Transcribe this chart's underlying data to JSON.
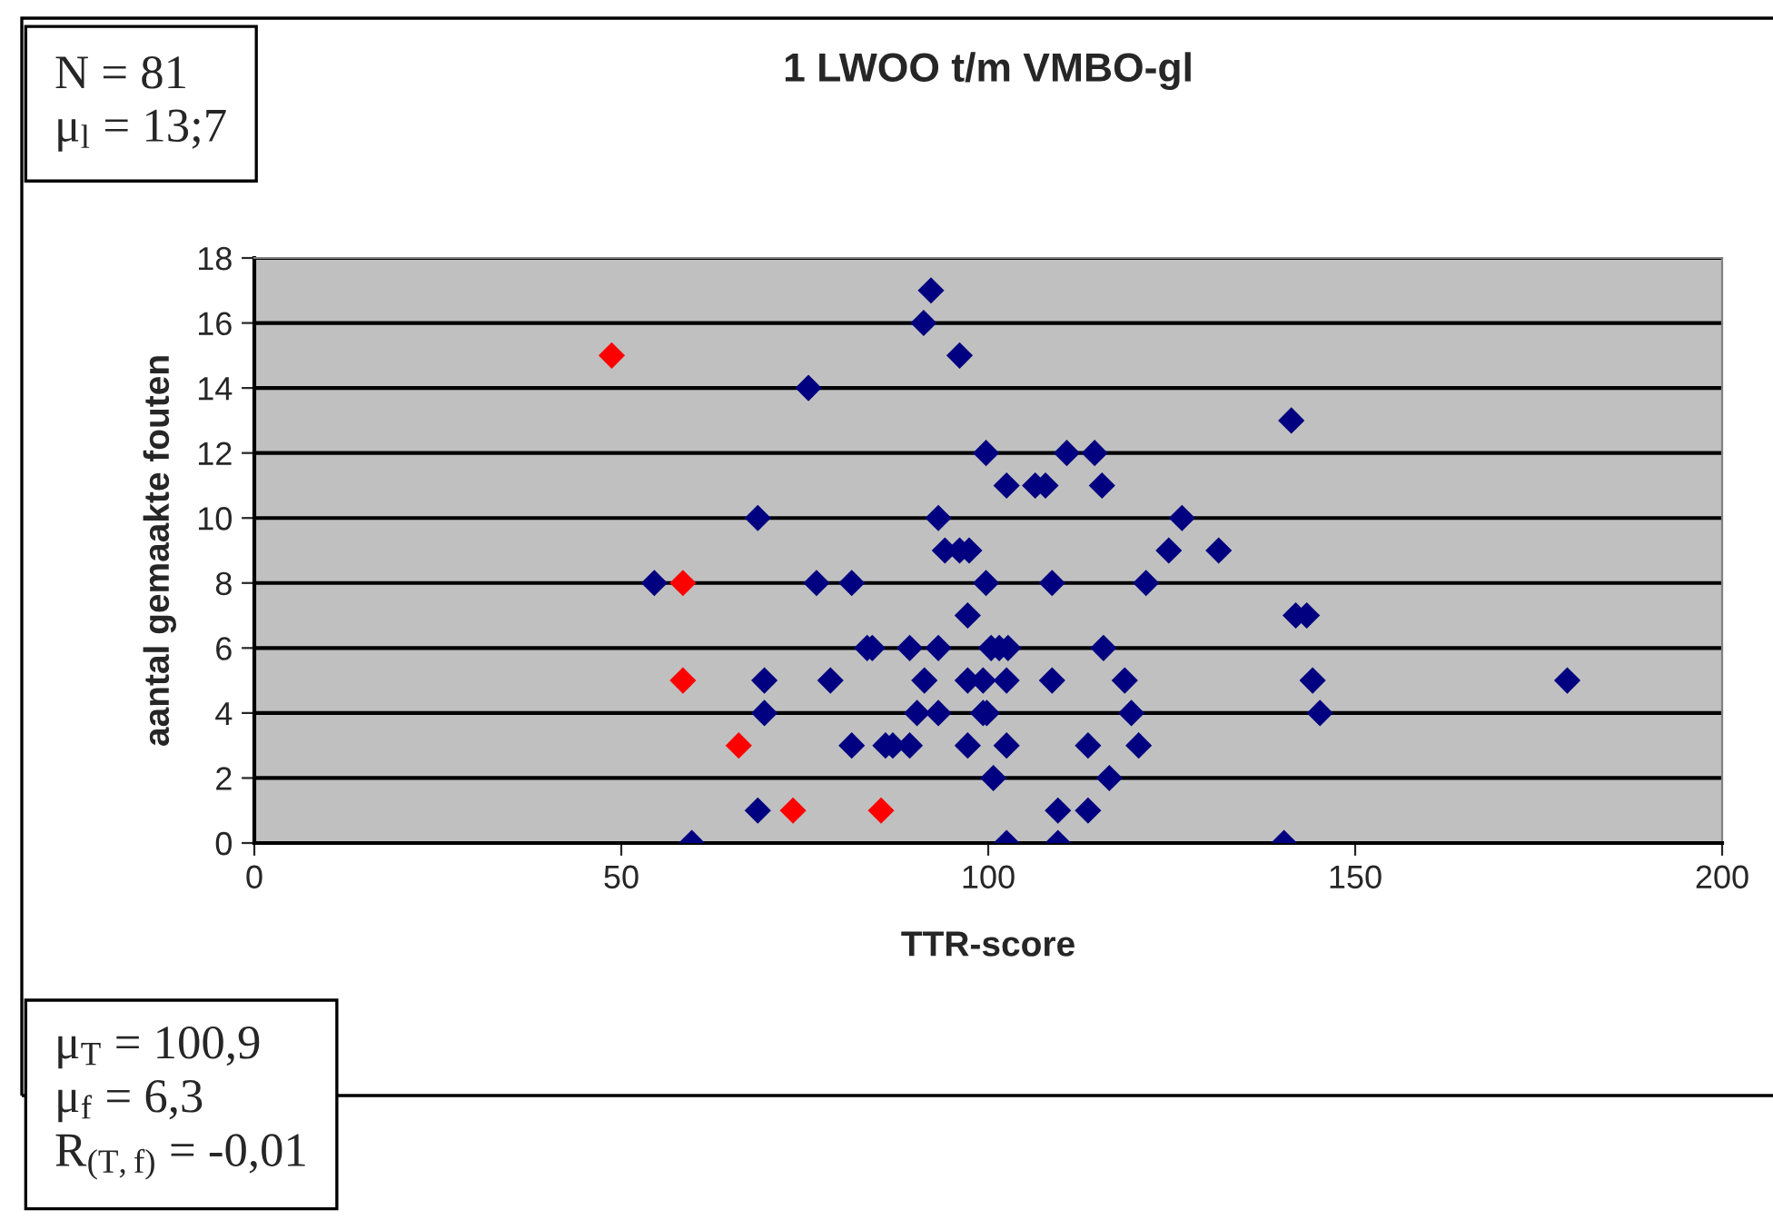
{
  "chart_data": {
    "type": "scatter",
    "title": "1 LWOO t/m VMBO-gl",
    "xlabel": "TTR-score",
    "ylabel": "aantal gemaakte fouten",
    "series": [
      {
        "color": "#000080",
        "x": [
          92.2,
          91.2,
          96.1,
          75.5,
          99.7,
          110.7,
          114.5,
          102.5,
          106.4,
          107.8,
          115.5,
          68.6,
          93.2,
          126.4,
          94.1,
          96.1,
          97.4,
          124.6,
          131.4,
          54.5,
          76.6,
          81.4,
          99.7,
          108.7,
          121.5,
          97.2,
          141.9,
          143.4,
          83.5,
          84.2,
          89.3,
          93.2,
          100.4,
          101.5,
          102.7,
          115.7,
          69.5,
          78.5,
          91.3,
          97.2,
          99.3,
          102.5,
          108.7,
          118.6,
          144.2,
          178.9,
          69.5,
          90.3,
          93.2,
          99.3,
          99.8,
          119.5,
          145.2,
          81.4,
          86,
          87,
          89.3,
          97.2,
          102.5,
          113.6,
          120.5,
          100.7,
          116.5,
          68.6,
          109.5,
          113.6,
          59.6,
          102.5,
          109.5,
          140.3,
          141.3
        ],
        "values": [
          17,
          16,
          15,
          14,
          12,
          12,
          12,
          11,
          11,
          11,
          11,
          10,
          10,
          10,
          9,
          9,
          9,
          9,
          9,
          8,
          8,
          8,
          8,
          8,
          8,
          7,
          7,
          7,
          6,
          6,
          6,
          6,
          6,
          6,
          6,
          6,
          5,
          5,
          5,
          5,
          5,
          5,
          5,
          5,
          5,
          5,
          4,
          4,
          4,
          4,
          4,
          4,
          4,
          3,
          3,
          3,
          3,
          3,
          3,
          3,
          3,
          2,
          2,
          1,
          1,
          1,
          0,
          0,
          0,
          0,
          13
        ]
      },
      {
        "color": "#ff0000",
        "x": [
          48.7,
          58.4,
          58.4,
          66,
          73.4,
          85.4
        ],
        "values": [
          15,
          8,
          5,
          3,
          1,
          1
        ]
      }
    ],
    "xlim": [
      0,
      200
    ],
    "xticks": [
      0,
      50,
      100,
      150,
      200
    ],
    "ylim": [
      0,
      18
    ],
    "yticks": [
      0,
      2,
      4,
      6,
      8,
      10,
      12,
      14,
      16,
      18
    ],
    "grid": "y",
    "marker": "diamond",
    "annotations": [
      "N = 81\nμ$_{l}$ = 13;7",
      "μ$_{T}$ = 100,9\nμ$_{f}$ = 6,3\nR$_{(T,f)}$ = -0,01"
    ]
  }
}
